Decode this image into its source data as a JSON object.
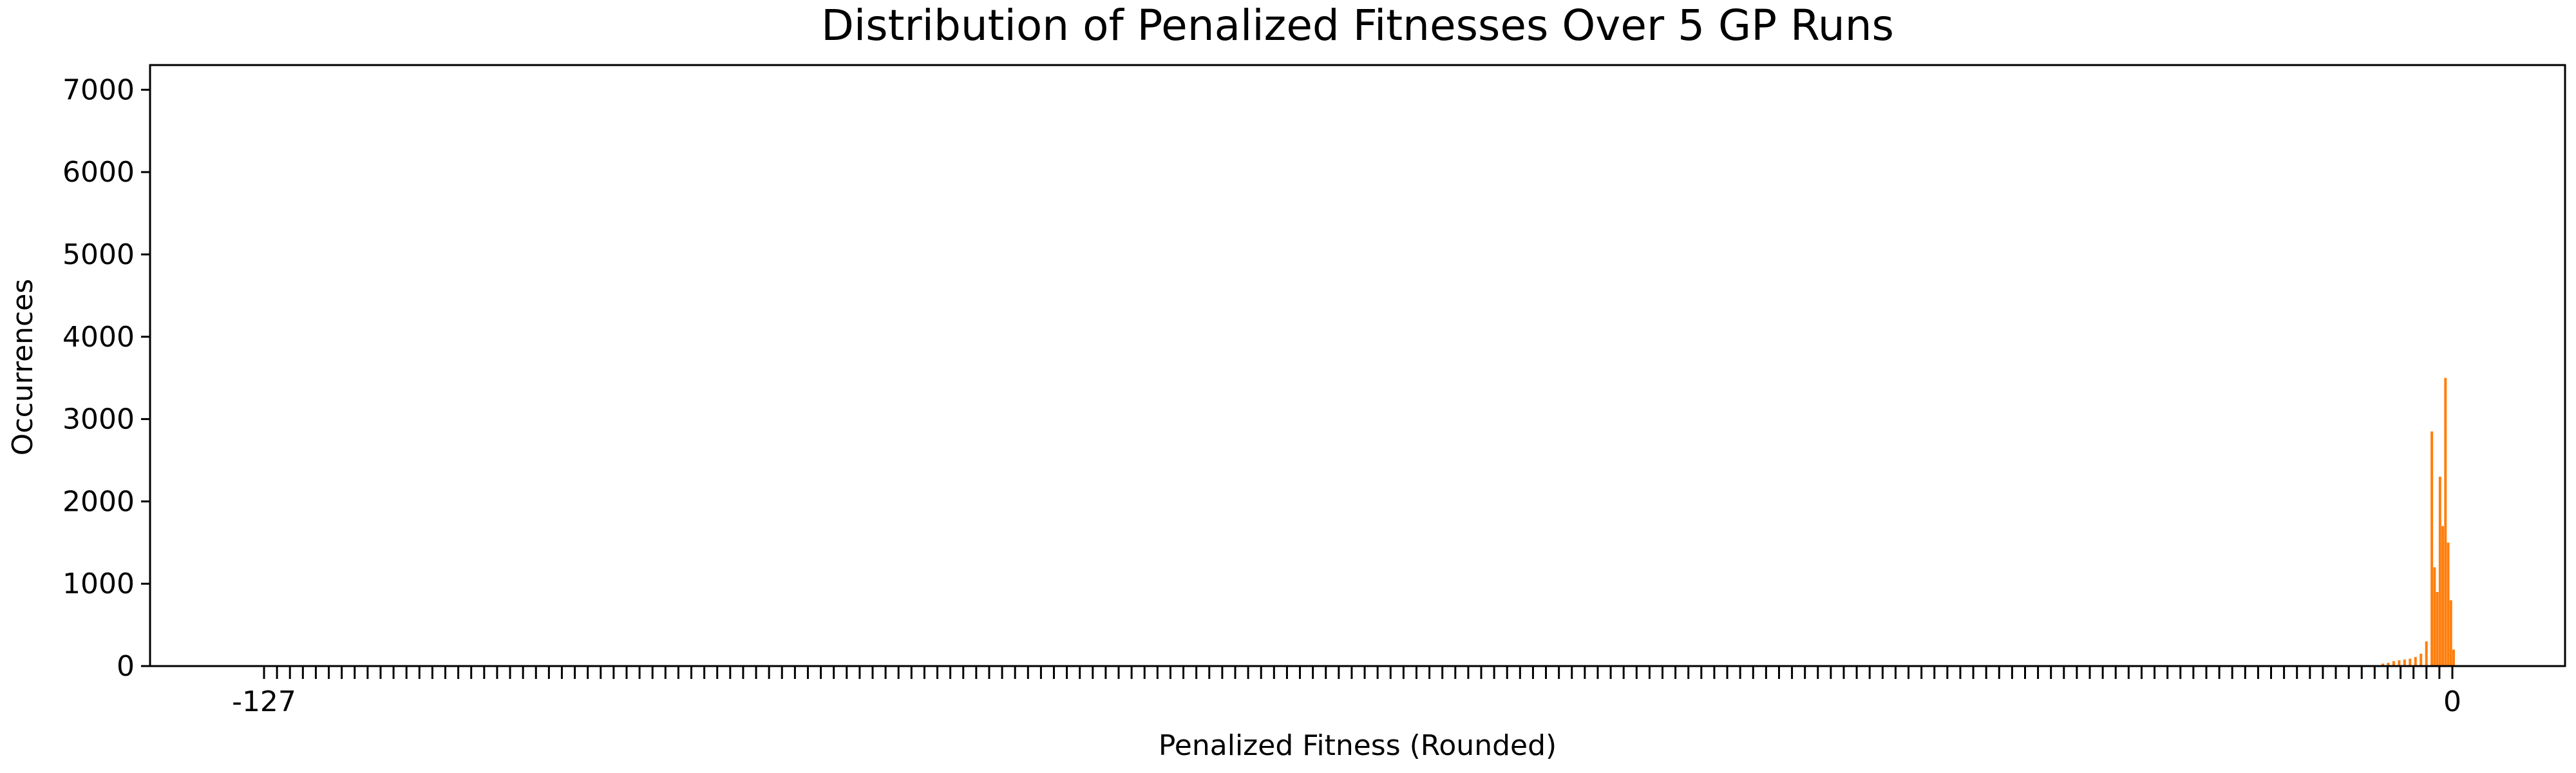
{
  "chart_data": {
    "type": "bar",
    "title": "Distribution of Penalized Fitnesses Over 5 GP Runs",
    "xlabel": "Penalized Fitness (Rounded)",
    "ylabel": "Occurrences",
    "ylim": [
      0,
      7300
    ],
    "y_ticks": [
      0,
      1000,
      2000,
      3000,
      4000,
      5000,
      6000,
      7000
    ],
    "x_tick_count": 170,
    "x_tick_first_label": "-127",
    "x_tick_last_label": "0",
    "bar_color": "#ff7f0e",
    "grid": false,
    "bars": [
      {
        "x": -12,
        "value": 30
      },
      {
        "x": -11,
        "value": 40
      },
      {
        "x": -10,
        "value": 60
      },
      {
        "x": -9,
        "value": 70
      },
      {
        "x": -8,
        "value": 80
      },
      {
        "x": -7,
        "value": 90
      },
      {
        "x": -6,
        "value": 110
      },
      {
        "x": -5,
        "value": 150
      },
      {
        "x": -4,
        "value": 300
      },
      {
        "x": -3,
        "value": 2850
      },
      {
        "x": -2.5,
        "value": 1200
      },
      {
        "x": -2,
        "value": 900
      },
      {
        "x": -1.5,
        "value": 2300
      },
      {
        "x": -1,
        "value": 1700
      },
      {
        "x": -0.5,
        "value": 3500
      },
      {
        "x": 0,
        "value": 1500
      },
      {
        "x": 0.5,
        "value": 800
      },
      {
        "x": 1,
        "value": 200
      }
    ]
  }
}
